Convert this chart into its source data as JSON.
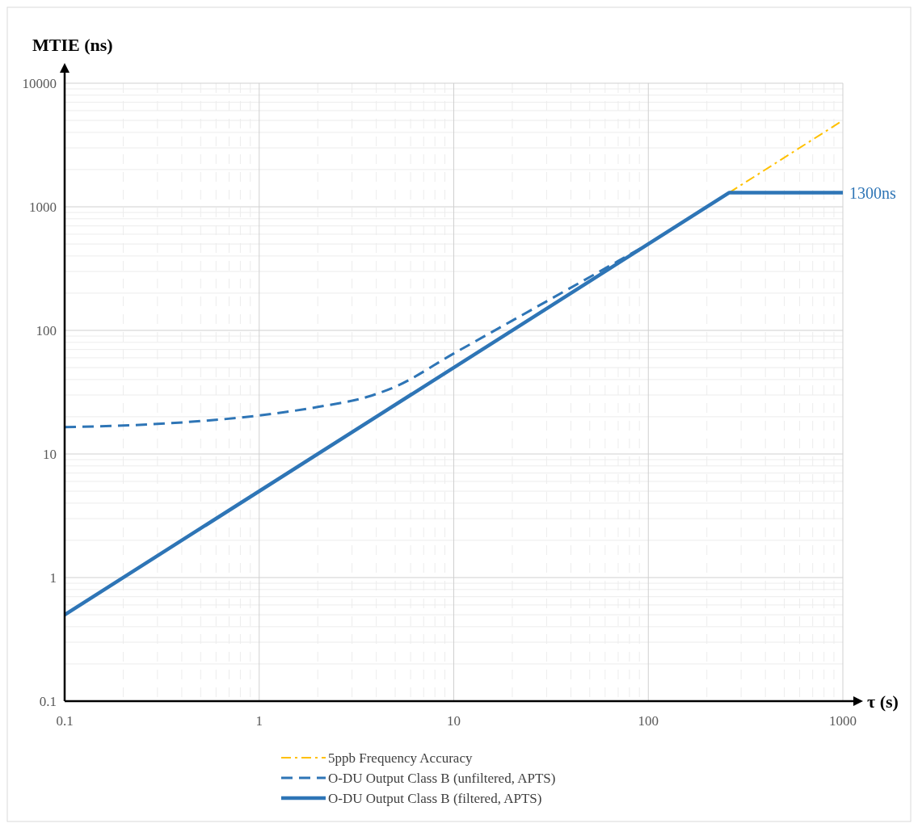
{
  "chart_data": {
    "type": "line",
    "xlabel": "τ (s)",
    "ylabel": "MTIE (ns)",
    "log": "xy",
    "xlim": [
      0.1,
      1000
    ],
    "ylim": [
      0.1,
      10000
    ],
    "xticks": [
      0.1,
      1,
      10,
      100,
      1000
    ],
    "yticks": [
      0.1,
      1,
      10,
      100,
      1000,
      10000
    ],
    "grid": true,
    "legend": "bottom",
    "series": [
      {
        "name": "5ppb Frequency Accuracy",
        "color": "#ffc000",
        "line_style": "dashdot",
        "x": [
          260,
          1000
        ],
        "values": [
          1300,
          5000
        ]
      },
      {
        "name": "O-DU Output Class B (unfiltered, APTS)",
        "color": "#2e75b6",
        "line_style": "dashed",
        "x": [
          0.1,
          0.3,
          1,
          2,
          3.6,
          5,
          10,
          20,
          50,
          100
        ],
        "values": [
          16.5,
          17.5,
          20.5,
          24,
          29,
          35,
          65,
          120,
          270,
          500
        ]
      },
      {
        "name": "O-DU Output Class B (filtered, APTS)",
        "color": "#2e75b6",
        "line_style": "solid",
        "x": [
          0.1,
          260,
          1000
        ],
        "values": [
          0.5,
          1300,
          1300
        ]
      }
    ],
    "annotations": [
      {
        "text": "1300ns",
        "x": 1000,
        "y": 1300
      }
    ]
  }
}
